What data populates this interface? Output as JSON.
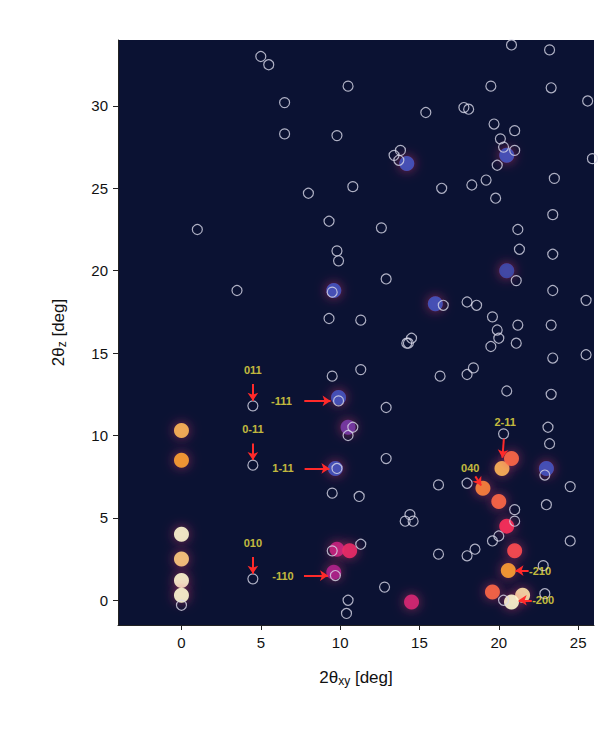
{
  "chart_data": {
    "type": "scatter",
    "xlabel": "2θxy [deg]",
    "ylabel": "2θz [deg]",
    "xlim": [
      -4,
      26
    ],
    "ylim": [
      -1.5,
      34
    ],
    "xticks": [
      0,
      5,
      10,
      15,
      20,
      25
    ],
    "yticks": [
      0,
      5,
      10,
      15,
      20,
      25,
      30
    ],
    "grid": false,
    "color": "#d8d8e8",
    "circles": [
      [
        0,
        -0.3
      ],
      [
        4.5,
        1.3
      ],
      [
        4.5,
        8.2
      ],
      [
        4.5,
        11.8
      ],
      [
        1,
        22.5
      ],
      [
        3.5,
        18.8
      ],
      [
        5,
        33
      ],
      [
        5.5,
        32.5
      ],
      [
        6.5,
        30.2
      ],
      [
        6.5,
        28.3
      ],
      [
        8,
        24.7
      ],
      [
        9.8,
        28.2
      ],
      [
        9.3,
        23
      ],
      [
        9.8,
        21.2
      ],
      [
        9.9,
        20.6
      ],
      [
        9.5,
        18.7
      ],
      [
        9.3,
        17.1
      ],
      [
        9.5,
        13.6
      ],
      [
        9.9,
        12.1
      ],
      [
        9.8,
        8.0
      ],
      [
        9.5,
        6.5
      ],
      [
        9.5,
        3.0
      ],
      [
        9.7,
        1.5
      ],
      [
        10.5,
        0
      ],
      [
        10.4,
        -0.8
      ],
      [
        10.5,
        10.0
      ],
      [
        10.8,
        10.5
      ],
      [
        10.8,
        25.1
      ],
      [
        10.5,
        31.2
      ],
      [
        11.3,
        17
      ],
      [
        11.3,
        14
      ],
      [
        11.2,
        6.3
      ],
      [
        11.3,
        3.4
      ],
      [
        12.6,
        22.6
      ],
      [
        12.9,
        19.5
      ],
      [
        12.9,
        11.7
      ],
      [
        12.9,
        8.6
      ],
      [
        12.8,
        0.8
      ],
      [
        13.4,
        27
      ],
      [
        13.7,
        26.7
      ],
      [
        13.8,
        27.3
      ],
      [
        14.2,
        15.6
      ],
      [
        14.5,
        15.9
      ],
      [
        14.3,
        15.6
      ],
      [
        14.1,
        4.8
      ],
      [
        14.4,
        5.2
      ],
      [
        14.6,
        4.8
      ],
      [
        15.4,
        29.6
      ],
      [
        16.4,
        25
      ],
      [
        16.5,
        17.9
      ],
      [
        16.3,
        13.6
      ],
      [
        16.2,
        7
      ],
      [
        16.2,
        2.8
      ],
      [
        17.8,
        29.9
      ],
      [
        18.1,
        29.8
      ],
      [
        18.3,
        25.2
      ],
      [
        18.0,
        18.1
      ],
      [
        18.6,
        17.9
      ],
      [
        18.0,
        13.7
      ],
      [
        18.4,
        14.1
      ],
      [
        18.0,
        7.1
      ],
      [
        18.5,
        3.1
      ],
      [
        18.0,
        2.7
      ],
      [
        19.2,
        25.5
      ],
      [
        19.5,
        31.2
      ],
      [
        19.7,
        28.9
      ],
      [
        19.9,
        26.4
      ],
      [
        19.8,
        24.4
      ],
      [
        19.6,
        17.2
      ],
      [
        19.9,
        16.4
      ],
      [
        20.0,
        15.9
      ],
      [
        19.5,
        15.4
      ],
      [
        20.8,
        33.7
      ],
      [
        20.1,
        28.0
      ],
      [
        20.3,
        27.5
      ],
      [
        21.0,
        28.5
      ],
      [
        21.0,
        27.3
      ],
      [
        21.2,
        22.5
      ],
      [
        21.3,
        21.3
      ],
      [
        21.1,
        19.4
      ],
      [
        21.2,
        16.7
      ],
      [
        21.1,
        15.6
      ],
      [
        20.5,
        12.7
      ],
      [
        20.3,
        10.1
      ],
      [
        21.0,
        5.5
      ],
      [
        21.0,
        4.8
      ],
      [
        20.0,
        3.9
      ],
      [
        19.6,
        3.6
      ],
      [
        20.3,
        0
      ],
      [
        23.2,
        33.4
      ],
      [
        23.3,
        31.1
      ],
      [
        23.5,
        25.6
      ],
      [
        23.4,
        23.4
      ],
      [
        23.4,
        21.0
      ],
      [
        23.4,
        18.8
      ],
      [
        23.3,
        16.7
      ],
      [
        23.4,
        14.7
      ],
      [
        23.3,
        12.5
      ],
      [
        23.1,
        10.5
      ],
      [
        23.2,
        9.5
      ],
      [
        22.9,
        7.6
      ],
      [
        23.0,
        5.8
      ],
      [
        22.8,
        2.1
      ],
      [
        22.9,
        0.4
      ],
      [
        24.5,
        6.9
      ],
      [
        24.5,
        3.6
      ],
      [
        25.6,
        30.3
      ],
      [
        25.9,
        26.8
      ],
      [
        25.5,
        18.2
      ],
      [
        25.5,
        14.9
      ]
    ],
    "spots": [
      [
        0,
        10.3,
        0.85
      ],
      [
        0,
        8.5,
        0.8
      ],
      [
        0,
        4.0,
        1.0
      ],
      [
        0,
        2.5,
        0.9
      ],
      [
        0,
        1.2,
        1.0
      ],
      [
        0,
        0.3,
        1.0
      ],
      [
        10.5,
        10.5,
        0.3
      ],
      [
        9.8,
        3.1,
        0.45
      ],
      [
        10.6,
        3.0,
        0.55
      ],
      [
        9.6,
        1.7,
        0.4
      ],
      [
        14.5,
        -0.1,
        0.5
      ],
      [
        19.0,
        6.8,
        0.75
      ],
      [
        20.2,
        8.0,
        0.85
      ],
      [
        20.8,
        8.6,
        0.7
      ],
      [
        20.0,
        6.0,
        0.7
      ],
      [
        20.5,
        4.5,
        0.6
      ],
      [
        20.6,
        1.8,
        0.8
      ],
      [
        21.0,
        3.0,
        0.65
      ],
      [
        21.5,
        0.3,
        0.95
      ],
      [
        20.8,
        -0.1,
        1.0
      ],
      [
        19.6,
        0.5,
        0.7
      ],
      [
        9.7,
        8.0,
        0.2
      ],
      [
        9.9,
        12.3,
        0.2
      ],
      [
        9.6,
        18.8,
        0.2
      ],
      [
        20.5,
        27,
        0.2
      ],
      [
        20.5,
        20,
        0.15
      ],
      [
        14.2,
        26.5,
        0.2
      ],
      [
        16,
        18,
        0.2
      ],
      [
        23,
        8,
        0.2
      ]
    ],
    "intensity_range": [
      0,
      1
    ],
    "annotations": [
      {
        "text": "011",
        "x": 4.5,
        "y": 11.8,
        "text_x": 4.5,
        "text_y": 14.0
      },
      {
        "text": "0-11",
        "x": 4.5,
        "y": 8.2,
        "text_x": 4.5,
        "text_y": 10.4
      },
      {
        "text": "010",
        "x": 4.5,
        "y": 1.3,
        "text_x": 4.5,
        "text_y": 3.5
      },
      {
        "text": "-111",
        "x": 9.9,
        "y": 12.1,
        "text_x": 6.3,
        "text_y": 12.1
      },
      {
        "text": "1-11",
        "x": 9.8,
        "y": 8.0,
        "text_x": 6.4,
        "text_y": 8.0
      },
      {
        "text": "-110",
        "x": 9.7,
        "y": 1.5,
        "text_x": 6.4,
        "text_y": 1.5
      },
      {
        "text": "2-11",
        "x": 20.2,
        "y": 8.3,
        "text_x": 20.4,
        "text_y": 10.8
      },
      {
        "text": "040",
        "x": 19.0,
        "y": 6.8,
        "text_x": 18.2,
        "text_y": 8.0
      },
      {
        "text": "-210",
        "x": 20.8,
        "y": 1.8,
        "text_x": 22.6,
        "text_y": 1.8
      },
      {
        "text": "-200",
        "x": 21.0,
        "y": 0,
        "text_x": 22.8,
        "text_y": 0
      }
    ]
  }
}
